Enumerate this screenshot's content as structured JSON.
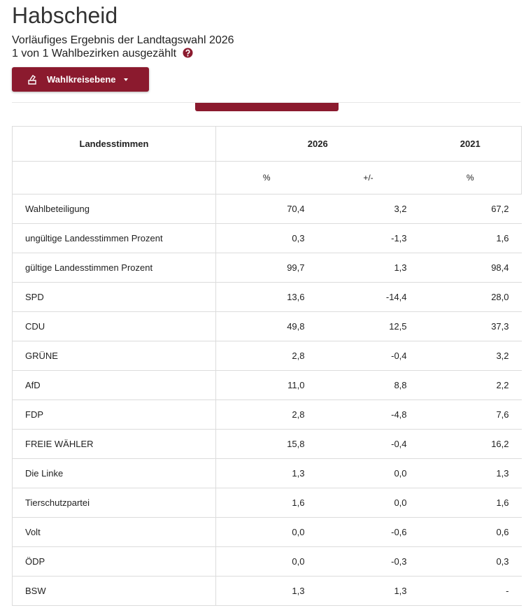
{
  "header": {
    "title": "Habscheid",
    "subtitle": "Vorläufiges Ergebnis der Landtagswahl 2026",
    "count": "1 von 1 Wahlbezirken ausgezählt"
  },
  "button": {
    "label": "Wahlkreisebene"
  },
  "table": {
    "columns": [
      "Landesstimmen",
      "2026",
      "2021"
    ],
    "subheaders": [
      "%",
      "+/-",
      "%"
    ],
    "rows": [
      [
        "Wahlbeteiligung",
        "70,4",
        "3,2",
        "67,2"
      ],
      [
        "ungültige Landesstimmen Prozent",
        "0,3",
        "-1,3",
        "1,6"
      ],
      [
        "gültige Landesstimmen Prozent",
        "99,7",
        "1,3",
        "98,4"
      ],
      [
        "SPD",
        "13,6",
        "-14,4",
        "28,0"
      ],
      [
        "CDU",
        "49,8",
        "12,5",
        "37,3"
      ],
      [
        "GRÜNE",
        "2,8",
        "-0,4",
        "3,2"
      ],
      [
        "AfD",
        "11,0",
        "8,8",
        "2,2"
      ],
      [
        "FDP",
        "2,8",
        "-4,8",
        "7,6"
      ],
      [
        "FREIE WÄHLER",
        "15,8",
        "-0,4",
        "16,2"
      ],
      [
        "Die Linke",
        "1,3",
        "0,0",
        "1,3"
      ],
      [
        "Tierschutzpartei",
        "1,6",
        "0,0",
        "1,6"
      ],
      [
        "Volt",
        "0,0",
        "-0,6",
        "0,6"
      ],
      [
        "ÖDP",
        "0,0",
        "-0,3",
        "0,3"
      ],
      [
        "BSW",
        "1,3",
        "1,3",
        "-"
      ]
    ]
  }
}
